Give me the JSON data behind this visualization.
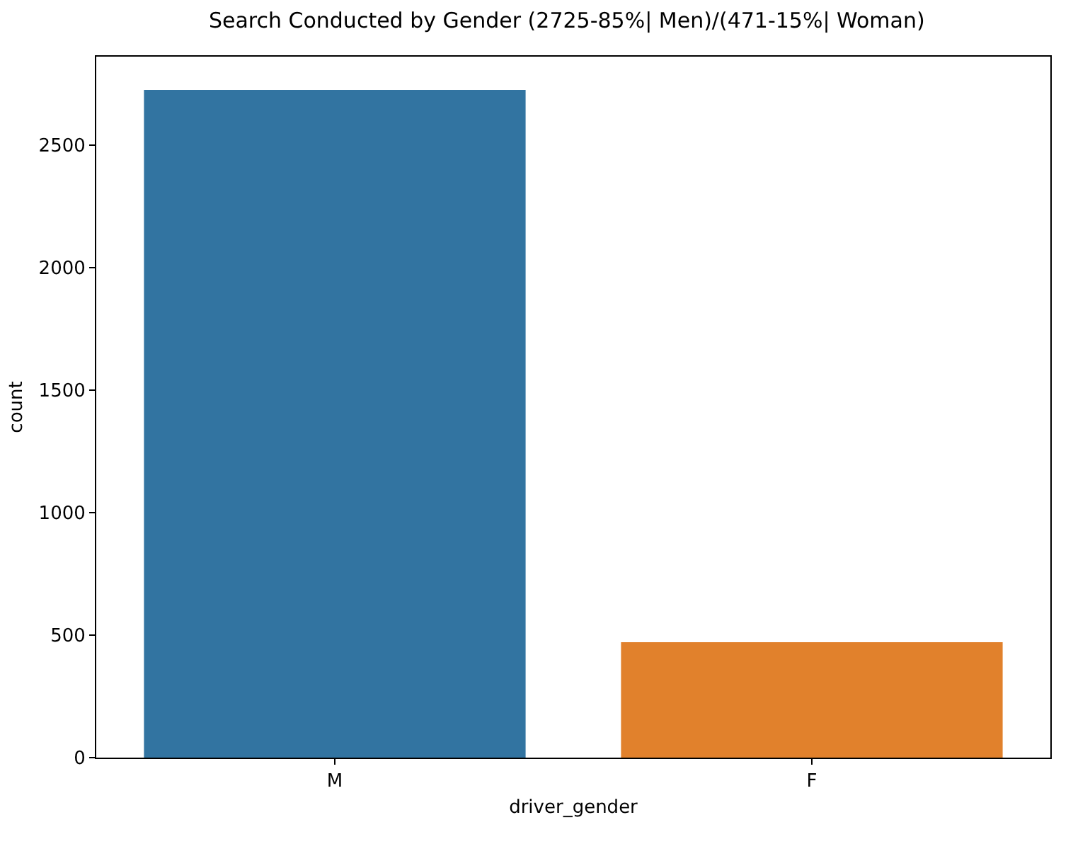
{
  "chart_data": {
    "type": "bar",
    "title": "Search Conducted by Gender (2725-85%| Men)/(471-15%| Woman)",
    "xlabel": "driver_gender",
    "ylabel": "count",
    "categories": [
      "M",
      "F"
    ],
    "values": [
      2725,
      471
    ],
    "colors": [
      "#3274a1",
      "#e1812c"
    ],
    "ylim": [
      0,
      2861
    ],
    "yticks": [
      0,
      500,
      1000,
      1500,
      2000,
      2500
    ],
    "grid": false
  }
}
